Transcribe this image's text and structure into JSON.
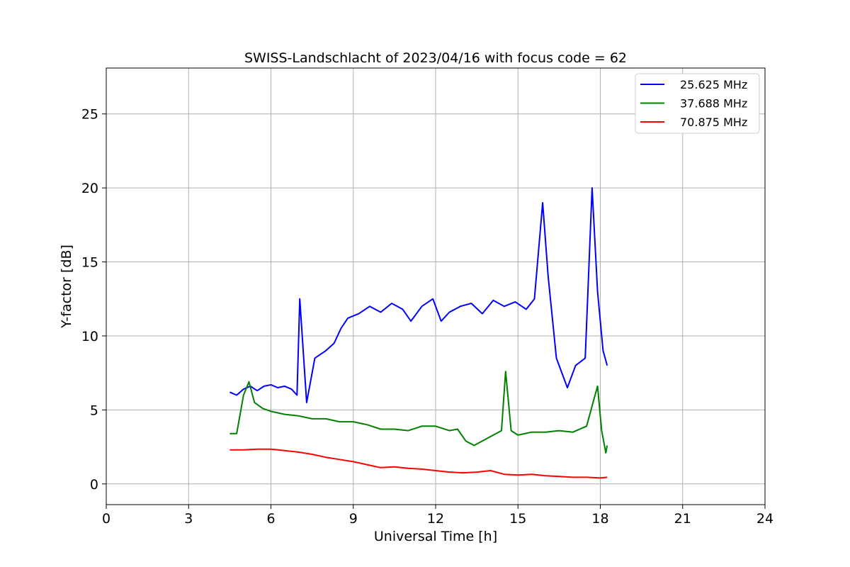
{
  "chart_data": {
    "type": "line",
    "title": "SWISS-Landschlacht of 2023/04/16 with focus code = 62",
    "xlabel": "Universal Time [h]",
    "ylabel": "Y-factor [dB]",
    "xlim": [
      0,
      24
    ],
    "ylim": [
      -1.4,
      28.1
    ],
    "xticks": [
      0,
      3,
      6,
      9,
      12,
      15,
      18,
      21,
      24
    ],
    "yticks": [
      0,
      5,
      10,
      15,
      20,
      25
    ],
    "grid": true,
    "legend_position": "top-right",
    "series": [
      {
        "name": "25.625 MHz",
        "color": "#0000ff",
        "x": [
          4.5,
          4.75,
          5.0,
          5.25,
          5.5,
          5.75,
          6.0,
          6.25,
          6.5,
          6.75,
          6.95,
          7.05,
          7.3,
          7.6,
          8.0,
          8.3,
          8.55,
          8.8,
          9.2,
          9.6,
          10.0,
          10.4,
          10.8,
          11.1,
          11.5,
          11.9,
          12.2,
          12.5,
          12.9,
          13.3,
          13.7,
          14.1,
          14.5,
          14.9,
          15.3,
          15.6,
          15.9,
          16.1,
          16.4,
          16.8,
          17.1,
          17.45,
          17.7,
          17.9,
          18.1,
          18.25
        ],
        "y": [
          6.2,
          6.0,
          6.4,
          6.6,
          6.3,
          6.6,
          6.7,
          6.5,
          6.6,
          6.4,
          6.0,
          12.5,
          5.5,
          8.5,
          9.0,
          9.5,
          10.5,
          11.2,
          11.5,
          12.0,
          11.6,
          12.2,
          11.8,
          11.0,
          12.0,
          12.5,
          11.0,
          11.6,
          12.0,
          12.2,
          11.5,
          12.4,
          12.0,
          12.3,
          11.8,
          12.5,
          19.0,
          14.0,
          8.5,
          6.5,
          8.0,
          8.5,
          20.0,
          13.0,
          9.0,
          8.0
        ]
      },
      {
        "name": "37.688 MHz",
        "color": "#008000",
        "x": [
          4.5,
          4.75,
          5.0,
          5.2,
          5.4,
          5.7,
          6.0,
          6.5,
          7.0,
          7.5,
          8.0,
          8.5,
          9.0,
          9.5,
          10.0,
          10.5,
          11.0,
          11.5,
          12.0,
          12.5,
          12.8,
          13.1,
          13.4,
          13.8,
          14.2,
          14.4,
          14.55,
          14.75,
          15.0,
          15.5,
          16.0,
          16.5,
          17.0,
          17.5,
          17.75,
          17.9,
          18.05,
          18.2,
          18.25
        ],
        "y": [
          3.4,
          3.4,
          6.0,
          6.9,
          5.5,
          5.1,
          4.9,
          4.7,
          4.6,
          4.4,
          4.4,
          4.2,
          4.2,
          4.0,
          3.7,
          3.7,
          3.6,
          3.9,
          3.9,
          3.6,
          3.7,
          2.9,
          2.6,
          3.0,
          3.4,
          3.6,
          7.6,
          3.6,
          3.3,
          3.5,
          3.5,
          3.6,
          3.5,
          3.9,
          5.6,
          6.6,
          3.6,
          2.1,
          2.6
        ]
      },
      {
        "name": "70.875 MHz",
        "color": "#ff0000",
        "x": [
          4.5,
          5.0,
          5.5,
          6.0,
          6.5,
          7.0,
          7.5,
          8.0,
          8.5,
          9.0,
          9.5,
          10.0,
          10.5,
          11.0,
          11.5,
          12.0,
          12.5,
          13.0,
          13.5,
          14.0,
          14.5,
          15.0,
          15.5,
          16.0,
          16.5,
          17.0,
          17.5,
          18.0,
          18.25
        ],
        "y": [
          2.3,
          2.3,
          2.35,
          2.35,
          2.25,
          2.15,
          2.0,
          1.8,
          1.65,
          1.5,
          1.3,
          1.1,
          1.15,
          1.05,
          1.0,
          0.9,
          0.8,
          0.75,
          0.8,
          0.9,
          0.65,
          0.6,
          0.65,
          0.55,
          0.5,
          0.45,
          0.45,
          0.4,
          0.45
        ]
      }
    ]
  }
}
